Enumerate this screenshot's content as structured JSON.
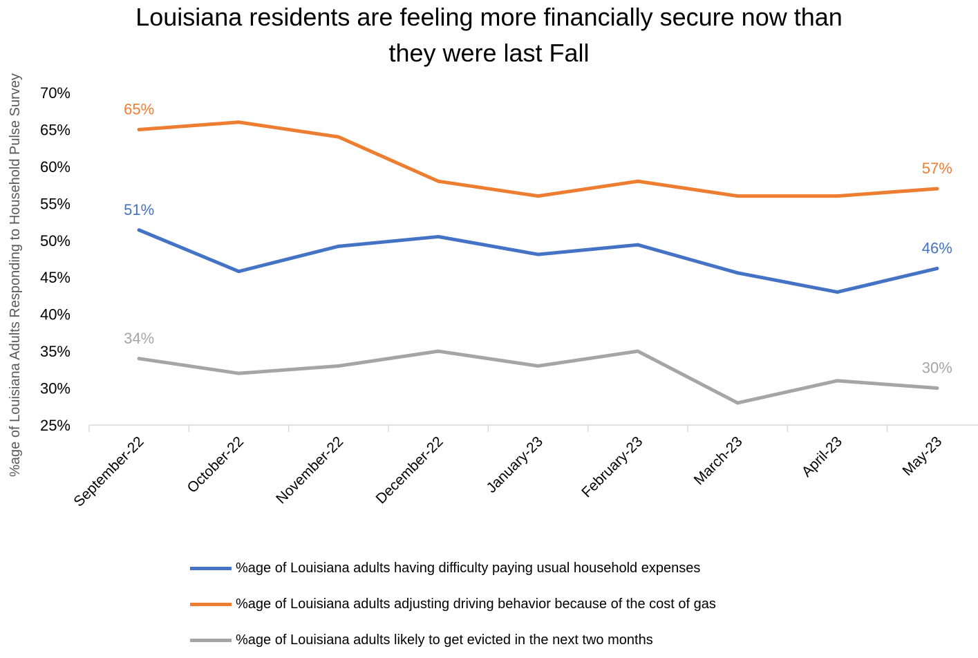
{
  "chart_data": {
    "type": "line",
    "title_lines": [
      "Louisiana residents are feeling more financially secure now than",
      "they were last Fall"
    ],
    "xlabel": "",
    "ylabel": "%age of Louisiana Adults Responding to Household Pulse Survey",
    "ylim": [
      25,
      70
    ],
    "yticks": [
      25,
      30,
      35,
      40,
      45,
      50,
      55,
      60,
      65,
      70
    ],
    "ytick_suffix": "%",
    "categories": [
      "September-22",
      "October-22",
      "November-22",
      "December-22",
      "January-23",
      "February-23",
      "March-23",
      "April-23",
      "May-23"
    ],
    "grid": false,
    "legend_position": "bottom",
    "series": [
      {
        "name": "%age of Louisiana adults having difficulty paying usual household expenses",
        "color": "#4472C4",
        "values": [
          51.4,
          45.8,
          49.2,
          50.5,
          48.1,
          49.4,
          45.6,
          43.0,
          46.2
        ],
        "data_labels": [
          {
            "index": 0,
            "text": "51%"
          },
          {
            "index": 8,
            "text": "46%"
          }
        ]
      },
      {
        "name": "%age of Louisiana adults adjusting driving behavior because of the cost of gas",
        "color": "#ED7D31",
        "values": [
          65,
          66,
          64,
          58,
          56,
          58,
          56,
          56,
          57
        ],
        "data_labels": [
          {
            "index": 0,
            "text": "65%"
          },
          {
            "index": 8,
            "text": "57%"
          }
        ]
      },
      {
        "name": "%age of Louisiana adults likely to get evicted in the next two months",
        "color": "#A5A5A5",
        "values": [
          34,
          32,
          33,
          35,
          33,
          35,
          28,
          31,
          30
        ],
        "data_labels": [
          {
            "index": 0,
            "text": "34%"
          },
          {
            "index": 8,
            "text": "30%"
          }
        ]
      }
    ]
  }
}
